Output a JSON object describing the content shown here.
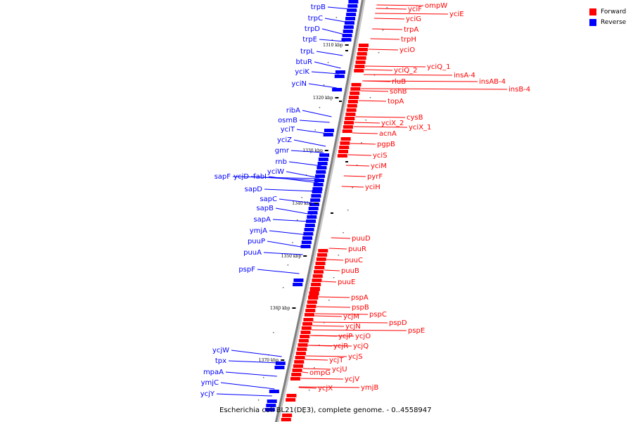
{
  "legend": {
    "items": [
      {
        "label": "Forward",
        "color": "#ff0000"
      },
      {
        "label": "Reverse",
        "color": "#0000ff"
      }
    ]
  },
  "caption": "Escherichia coli BL21(DE3), complete genome. - 0..4558947",
  "colors": {
    "forward": "#ff0000",
    "reverse": "#0000ff",
    "backbone": "#808080"
  },
  "ticks": [
    "1310 kbp",
    "1320 kbp",
    "1330 kbp",
    "1340 kbp",
    "1350 kbp",
    "1360 kbp",
    "1370 kbp"
  ],
  "reverse_genes": [
    "trpB",
    "trpC",
    "trpD",
    "trpE",
    "trpL",
    "btuR",
    "yciK",
    "yciN",
    "ribA",
    "osmB",
    "yciT",
    "yciZ",
    "gmr",
    "rnb",
    "yciW",
    "sapF",
    "ycjD",
    "fabI",
    "sapD",
    "sapC",
    "sapB",
    "sapA",
    "ymjA",
    "puuP",
    "puuA",
    "pspF",
    "ycjW",
    "tpx",
    "mpaA",
    "ymjC",
    "ycjY"
  ],
  "forward_genes": [
    "ompW",
    "yciF",
    "yciE",
    "yciG",
    "trpA",
    "trpH",
    "yciO",
    "yciQ_1",
    "yciQ_2",
    "insA-4",
    "insAB-4",
    "insB-4",
    "rluB",
    "sohB",
    "topA",
    "cysB",
    "yciX_2",
    "yciX_1",
    "acnA",
    "pgpB",
    "yciS",
    "yciM",
    "pyrF",
    "yciH",
    "puuD",
    "puuR",
    "puuC",
    "puuB",
    "puuE",
    "pspA",
    "pspB",
    "pspC",
    "pspD",
    "pspE",
    "ycjM",
    "ycjN",
    "ycjP",
    "ycjO",
    "ycjR",
    "ycjQ",
    "ycjS",
    "ycjT",
    "ycjU",
    "ompG",
    "ycjV",
    "ymjB",
    "ycjX"
  ]
}
